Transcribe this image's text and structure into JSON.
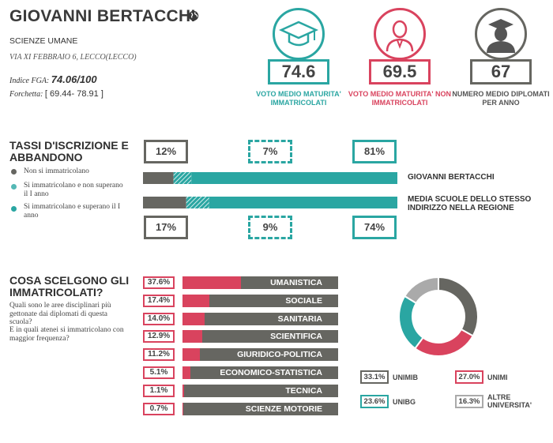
{
  "header": {
    "title": "GIOVANNI BERTACCHI",
    "globe_icon": "globe-icon",
    "subtitle": "SCIENZE UMANE",
    "address": "VIA XI FEBBRAIO 6, LECCO(LECCO)",
    "fga_label": "Indice FGA:",
    "fga_value": "74.06/100",
    "forchetta_label": "Forchetta:",
    "forchetta_value": "[ 69.44- 78.91 ]"
  },
  "kpis": [
    {
      "icon": "graduation-cap-icon",
      "value": "74.6",
      "label": "VOTO MEDIO MATURITA' IMMATRICOLATI",
      "color": "#2aa6a2"
    },
    {
      "icon": "person-icon",
      "value": "69.5",
      "label": "VOTO MEDIO MATURITA' NON IMMATRICOLATI",
      "color": "#d9435e"
    },
    {
      "icon": "graduate-icon",
      "value": "67",
      "label": "NUMERO MEDIO DIPLOMATI PER ANNO",
      "color": "#666661"
    }
  ],
  "enrollment": {
    "title": "TASSI D'ISCRIZIONE E ABBANDONO",
    "legend": [
      {
        "label": "Non si immatricolano",
        "color": "#666661",
        "style": "solid"
      },
      {
        "label": "Si immatricolano e non superano il I anno",
        "color": "#2aa6a2",
        "style": "hatched"
      },
      {
        "label": "Si immatricolano e superano il I anno",
        "color": "#2aa6a2",
        "style": "solid"
      }
    ],
    "school": {
      "label": "GIOVANNI BERTACCHI",
      "values": [
        12,
        7,
        81
      ],
      "texts": [
        "12%",
        "7%",
        "81%"
      ]
    },
    "region": {
      "label": "MEDIA SCUOLE DELLO STESSO INDIRIZZO NELLA REGIONE",
      "values": [
        17,
        9,
        74
      ],
      "texts": [
        "17%",
        "9%",
        "74%"
      ]
    }
  },
  "choices": {
    "title": "COSA SCELGONO GLI IMMATRICOLATI?",
    "question1": "Quali sono le aree disciplinari più gettonate dai diplomati di questa scuola?",
    "question2": "E in quali atenei si immatricolano con maggior frequenza?"
  },
  "chart_data": [
    {
      "type": "bar",
      "categories": [
        "UMANISTICA",
        "SOCIALE",
        "SANITARIA",
        "SCIENTIFICA",
        "GIURIDICO-POLITICA",
        "ECONOMICO-STATISTICA",
        "TECNICA",
        "SCIENZE MOTORIE"
      ],
      "values": [
        37.6,
        17.4,
        14.0,
        12.9,
        11.2,
        5.1,
        1.1,
        0.7
      ],
      "labels": [
        "37.6%",
        "17.4%",
        "14.0%",
        "12.9%",
        "11.2%",
        "5.1%",
        "1.1%",
        "0.7%"
      ],
      "fill_color": "#d9435e",
      "track_color": "#666661"
    },
    {
      "type": "pie",
      "categories": [
        "UNIMIB",
        "UNIMI",
        "UNIBG",
        "ALTRE UNIVERSITA'"
      ],
      "values": [
        33.1,
        27.0,
        23.6,
        16.3
      ],
      "labels": [
        "33.1%",
        "27.0%",
        "23.6%",
        "16.3%"
      ],
      "colors": [
        "#666661",
        "#d9435e",
        "#2aa6a2",
        "#aaaaaa"
      ]
    }
  ]
}
